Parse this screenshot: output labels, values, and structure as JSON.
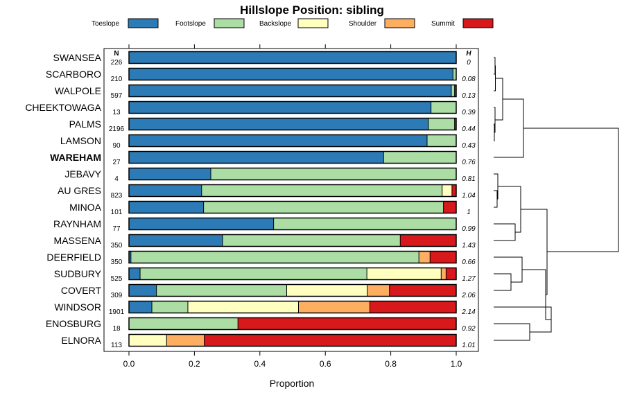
{
  "chart_data": {
    "type": "bar",
    "stacked": true,
    "orientation": "horizontal",
    "title": "Hillslope Position: sibling",
    "xlabel": "Proportion",
    "xlim": [
      0,
      1
    ],
    "xticks": [
      "0.0",
      "0.2",
      "0.4",
      "0.6",
      "0.8",
      "1.0"
    ],
    "n_header": "N",
    "h_header": "H",
    "legend_placement": "top",
    "series": [
      {
        "name": "Toeslope",
        "color": "#2c7bb6"
      },
      {
        "name": "Footslope",
        "color": "#abdda4"
      },
      {
        "name": "Backslope",
        "color": "#ffffbf"
      },
      {
        "name": "Shoulder",
        "color": "#fdae61"
      },
      {
        "name": "Summit",
        "color": "#d7191c"
      }
    ],
    "rows": [
      {
        "label": "SWANSEA",
        "n": "226",
        "h": "0",
        "bold": false,
        "values": [
          1.0,
          0,
          0,
          0,
          0
        ]
      },
      {
        "label": "SCARBORO",
        "n": "210",
        "h": "0.08",
        "bold": false,
        "values": [
          0.99,
          0.01,
          0,
          0,
          0
        ]
      },
      {
        "label": "WALPOLE",
        "n": "597",
        "h": "0.13",
        "bold": false,
        "values": [
          0.985,
          0.01,
          0,
          0,
          0.005
        ]
      },
      {
        "label": "CHEEKTOWAGA",
        "n": "13",
        "h": "0.39",
        "bold": false,
        "values": [
          0.923,
          0.077,
          0,
          0,
          0
        ]
      },
      {
        "label": "PALMS",
        "n": "2196",
        "h": "0.44",
        "bold": false,
        "values": [
          0.915,
          0.08,
          0,
          0,
          0.005
        ]
      },
      {
        "label": "LAMSON",
        "n": "90",
        "h": "0.43",
        "bold": false,
        "values": [
          0.911,
          0.089,
          0,
          0,
          0
        ]
      },
      {
        "label": "WAREHAM",
        "n": "27",
        "h": "0.76",
        "bold": true,
        "values": [
          0.778,
          0.222,
          0,
          0,
          0
        ]
      },
      {
        "label": "JEBAVY",
        "n": "4",
        "h": "0.81",
        "bold": false,
        "values": [
          0.25,
          0.75,
          0,
          0,
          0
        ]
      },
      {
        "label": "AU GRES",
        "n": "823",
        "h": "1.04",
        "bold": false,
        "values": [
          0.222,
          0.735,
          0.03,
          0,
          0.013
        ]
      },
      {
        "label": "MINOA",
        "n": "101",
        "h": "1",
        "bold": false,
        "values": [
          0.228,
          0.733,
          0,
          0,
          0.039
        ]
      },
      {
        "label": "RAYNHAM",
        "n": "77",
        "h": "0.99",
        "bold": false,
        "values": [
          0.442,
          0.558,
          0,
          0,
          0
        ]
      },
      {
        "label": "MASSENA",
        "n": "350",
        "h": "1.43",
        "bold": false,
        "values": [
          0.286,
          0.543,
          0,
          0,
          0.171
        ]
      },
      {
        "label": "DEERFIELD",
        "n": "350",
        "h": "0.66",
        "bold": false,
        "values": [
          0.006,
          0.88,
          0,
          0.034,
          0.08
        ]
      },
      {
        "label": "SUDBURY",
        "n": "525",
        "h": "1.27",
        "bold": false,
        "values": [
          0.034,
          0.693,
          0.227,
          0.015,
          0.031
        ]
      },
      {
        "label": "COVERT",
        "n": "309",
        "h": "2.06",
        "bold": false,
        "values": [
          0.084,
          0.398,
          0.246,
          0.068,
          0.204
        ]
      },
      {
        "label": "WINDSOR",
        "n": "1901",
        "h": "2.14",
        "bold": false,
        "values": [
          0.07,
          0.11,
          0.338,
          0.218,
          0.264
        ]
      },
      {
        "label": "ENOSBURG",
        "n": "18",
        "h": "0.92",
        "bold": false,
        "values": [
          0,
          0.333,
          0,
          0,
          0.667
        ]
      },
      {
        "label": "ELNORA",
        "n": "113",
        "h": "1.01",
        "bold": false,
        "values": [
          0,
          0,
          0.115,
          0.115,
          0.77
        ]
      }
    ]
  }
}
